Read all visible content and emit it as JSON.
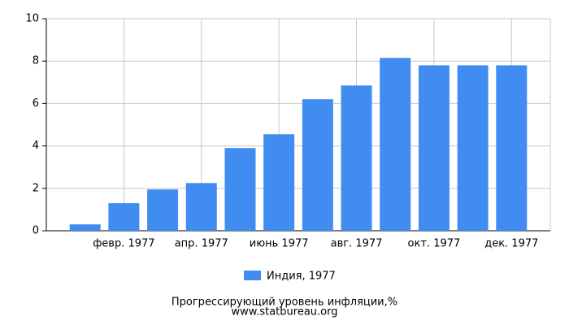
{
  "chart_data": {
    "type": "bar",
    "categories": [
      null,
      "февр. 1977",
      null,
      "апр. 1977",
      null,
      "июнь 1977",
      null,
      "авг. 1977",
      null,
      "окт. 1977",
      null,
      "дек. 1977"
    ],
    "series": [
      {
        "name": "Индия, 1977",
        "color": "#418cf0",
        "values": [
          0.3,
          1.3,
          1.95,
          2.25,
          3.9,
          4.55,
          6.2,
          6.85,
          8.15,
          7.8,
          7.8,
          7.8
        ]
      }
    ],
    "ylim": [
      0,
      10
    ],
    "yticks": [
      0,
      2,
      4,
      6,
      8,
      10
    ],
    "grid": true,
    "title": "Прогрессирующий уровень инфляции,%",
    "source": "www.statbureau.org"
  }
}
